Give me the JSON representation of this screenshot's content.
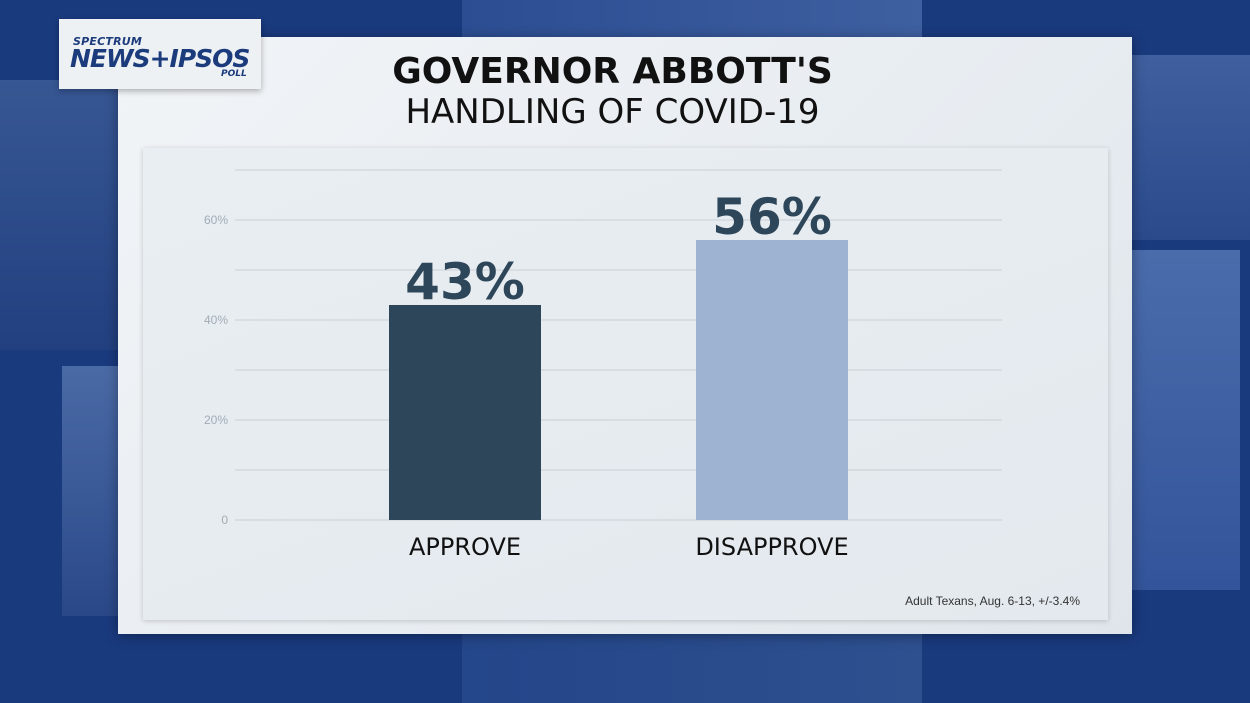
{
  "branding": {
    "logo_line1": "SPECTRUM",
    "logo_line2": "NEWS+IPSOS",
    "logo_line3": "POLL"
  },
  "header": {
    "title": "GOVERNOR ABBOTT'S",
    "subtitle": "HANDLING OF COVID-19"
  },
  "footer": {
    "source": "Adult Texans, Aug. 6-13, +/-3.4%"
  },
  "colors": {
    "approve": "#2e4659",
    "disapprove": "#9db3d1",
    "background": "#1a3a7e"
  },
  "chart_data": {
    "type": "bar",
    "categories": [
      "APPROVE",
      "DISAPPROVE"
    ],
    "values": [
      43,
      56
    ],
    "data_labels": [
      "43%",
      "56%"
    ],
    "ytick_labels": [
      "0",
      "20%",
      "40%",
      "60%"
    ],
    "ytick_values": [
      0,
      20,
      40,
      60
    ],
    "ylim": [
      0,
      70
    ],
    "grid": true,
    "title": "GOVERNOR ABBOTT'S",
    "subtitle": "HANDLING OF COVID-19"
  }
}
